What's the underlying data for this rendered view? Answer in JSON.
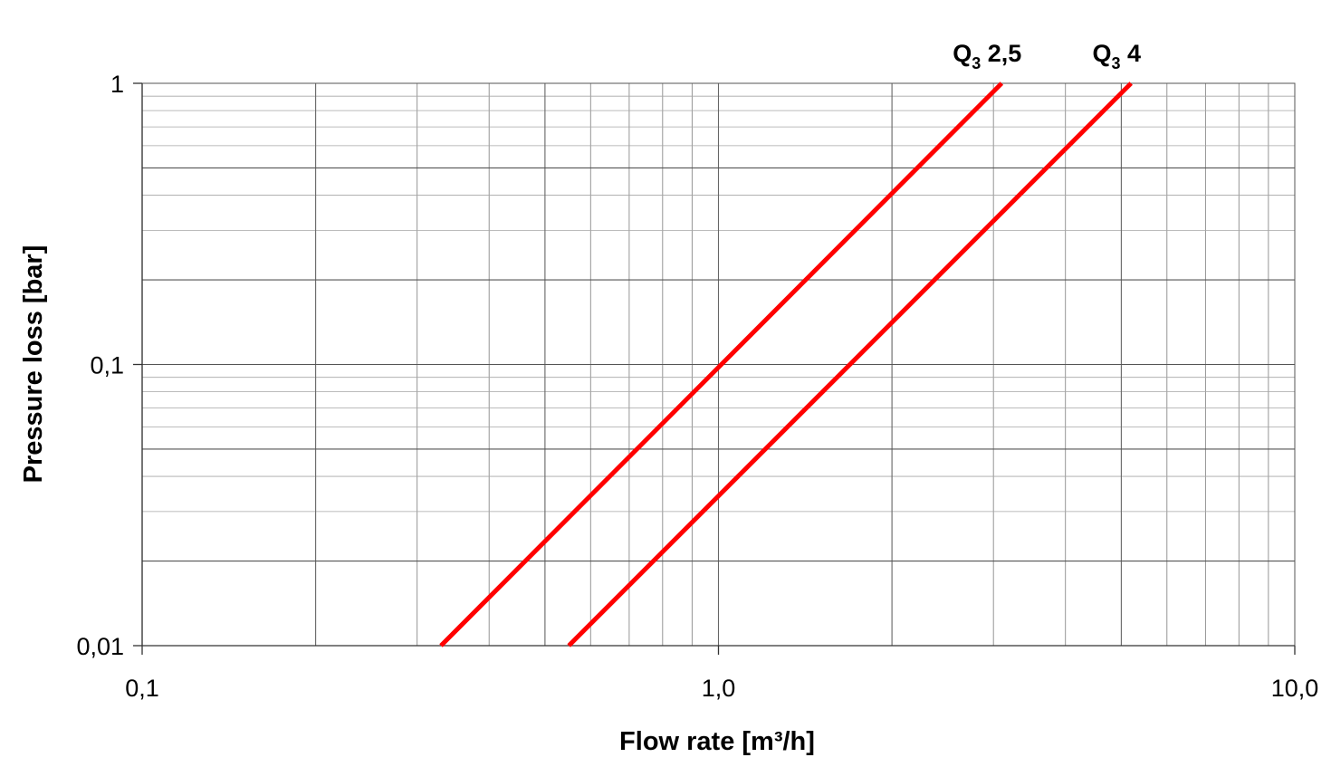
{
  "chart_data": {
    "type": "line",
    "title": "",
    "xlabel": "Flow rate [m³/h]",
    "ylabel": "Pressure loss [bar]",
    "x_scale": "log",
    "y_scale": "log",
    "xlim": [
      0.1,
      10.0
    ],
    "ylim": [
      0.01,
      1
    ],
    "grid": true,
    "legend": "series labels at the top ends of the lines",
    "x_tick_labels": [
      {
        "value": 0.1,
        "label": "0,1"
      },
      {
        "value": 1.0,
        "label": "1,0"
      },
      {
        "value": 10.0,
        "label": "10,0"
      }
    ],
    "y_tick_labels": [
      {
        "value": 1,
        "label": "1"
      },
      {
        "value": 0.1,
        "label": "0,1"
      },
      {
        "value": 0.01,
        "label": "0,01"
      }
    ],
    "series": [
      {
        "label_main": "Q",
        "label_sub": "3",
        "label_rest": " 2,5",
        "color": "#ff0000",
        "x": [
          0.33,
          3.1
        ],
        "y": [
          0.01,
          1
        ]
      },
      {
        "label_main": "Q",
        "label_sub": "3",
        "label_rest": " 4",
        "color": "#ff0000",
        "x": [
          0.55,
          5.2
        ],
        "y": [
          0.01,
          1
        ]
      }
    ]
  }
}
